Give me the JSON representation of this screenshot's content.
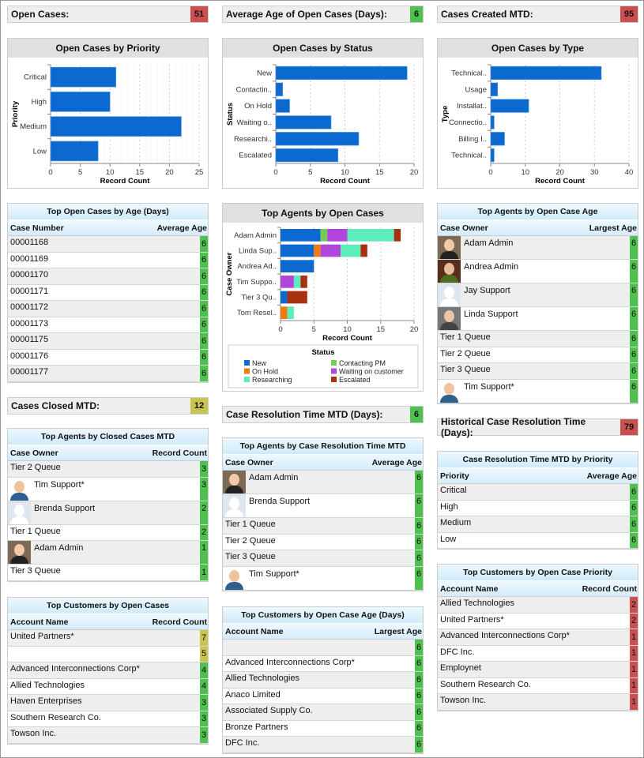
{
  "colors": {
    "green": "#4fc14f",
    "red": "#c9504f",
    "yellow": "#c8c450",
    "bar": "#0b69cf"
  },
  "metrics": [
    {
      "label": "Open Cases:",
      "value": "51",
      "color": "red"
    },
    {
      "label": "Average Age of Open Cases (Days):",
      "value": "6",
      "color": "green"
    },
    {
      "label": "Cases Created MTD:",
      "value": "95",
      "color": "red"
    },
    {
      "label": "Cases Closed MTD:",
      "value": "12",
      "color": "yellow"
    },
    {
      "label": "Case Resolution Time MTD (Days):",
      "value": "6",
      "color": "green"
    },
    {
      "label": "Historical Case Resolution Time (Days):",
      "value": "79",
      "color": "red"
    }
  ],
  "chart_data": [
    {
      "type": "bar",
      "orientation": "horizontal",
      "title": "Open Cases by Priority",
      "xlabel": "Record Count",
      "ylabel": "Priority",
      "categories": [
        "Critical",
        "High",
        "Medium",
        "Low"
      ],
      "values": [
        11,
        10,
        22,
        8
      ],
      "xlim": [
        0,
        25
      ],
      "xticks": [
        0,
        5,
        10,
        15,
        20,
        25
      ],
      "grid": true
    },
    {
      "type": "bar",
      "orientation": "horizontal",
      "title": "Open Cases by Status",
      "xlabel": "Record Count",
      "ylabel": "Status",
      "categories": [
        "New",
        "Contactin..",
        "On Hold",
        "Waiting o..",
        "Researchi..",
        "Escalated"
      ],
      "values": [
        19,
        1,
        2,
        8,
        12,
        9
      ],
      "xlim": [
        0,
        20
      ],
      "xticks": [
        0,
        5,
        10,
        15,
        20
      ],
      "grid": true
    },
    {
      "type": "bar",
      "orientation": "horizontal",
      "title": "Open Cases by Type",
      "xlabel": "Record Count",
      "ylabel": "Type",
      "categories": [
        "Technical..",
        "Usage",
        "Installat..",
        "Connectio..",
        "Billing I..",
        "Technical.."
      ],
      "values": [
        32,
        2,
        11,
        1,
        4,
        1
      ],
      "xlim": [
        0,
        40
      ],
      "xticks": [
        0,
        10,
        20,
        30,
        40
      ],
      "grid": true
    },
    {
      "type": "bar",
      "orientation": "horizontal",
      "stacked": true,
      "title": "Top Agents by Open Cases",
      "xlabel": "Record Count",
      "ylabel": "Case Owner",
      "categories": [
        "Adam Admin",
        "Linda Sup..",
        "Andrea Ad..",
        "Tim Suppo..",
        "Tier 3 Qu..",
        "Tom Resel.."
      ],
      "xlim": [
        0,
        20
      ],
      "xticks": [
        0,
        5,
        10,
        15,
        20
      ],
      "grid": true,
      "legend_title": "Status",
      "legend_position": "bottom",
      "series": [
        {
          "name": "New",
          "color": "#0b69cf",
          "values": [
            6,
            5,
            5,
            0,
            1,
            0
          ]
        },
        {
          "name": "Contacting PM",
          "color": "#6fcf57",
          "values": [
            1,
            0,
            0,
            0,
            0,
            0
          ]
        },
        {
          "name": "On Hold",
          "color": "#ee7a10",
          "values": [
            0,
            1,
            0,
            0,
            0,
            1
          ]
        },
        {
          "name": "Waiting on customer",
          "color": "#b145dc",
          "values": [
            3,
            3,
            0,
            2,
            0,
            0
          ]
        },
        {
          "name": "Researching",
          "color": "#5eecba",
          "values": [
            7,
            3,
            0,
            1,
            0,
            1
          ]
        },
        {
          "name": "Escalated",
          "color": "#a8300f",
          "values": [
            1,
            1,
            0,
            1,
            3,
            0
          ]
        }
      ]
    }
  ],
  "tables": [
    {
      "title": "Top Open Cases by Age (Days)",
      "columns": [
        "Case Number",
        "Average Age"
      ],
      "rows": [
        {
          "name": "00001168",
          "value": "6",
          "color": "green"
        },
        {
          "name": "00001169",
          "value": "6",
          "color": "green"
        },
        {
          "name": "00001170",
          "value": "6",
          "color": "green"
        },
        {
          "name": "00001171",
          "value": "6",
          "color": "green"
        },
        {
          "name": "00001172",
          "value": "6",
          "color": "green"
        },
        {
          "name": "00001173",
          "value": "6",
          "color": "green"
        },
        {
          "name": "00001175",
          "value": "6",
          "color": "green"
        },
        {
          "name": "00001176",
          "value": "6",
          "color": "green"
        },
        {
          "name": "00001177",
          "value": "6",
          "color": "green"
        }
      ]
    },
    {
      "title": "Top Agents by Closed Cases MTD",
      "columns": [
        "Case Owner",
        "Record Count"
      ],
      "rows": [
        {
          "name": "Tier 2 Queue",
          "value": "3",
          "color": "green"
        },
        {
          "name": "Tim Support*",
          "value": "3",
          "color": "green",
          "avatar": "tim"
        },
        {
          "name": "Brenda Support",
          "value": "2",
          "color": "green",
          "avatar": "blank"
        },
        {
          "name": "Tier 1 Queue",
          "value": "2",
          "color": "green"
        },
        {
          "name": "Adam Admin",
          "value": "1",
          "color": "green",
          "avatar": "adam"
        },
        {
          "name": "Tier 3 Queue",
          "value": "1",
          "color": "green"
        }
      ]
    },
    {
      "title": "Top Customers by Open Cases",
      "columns": [
        "Account Name",
        "Record Count"
      ],
      "rows": [
        {
          "name": "United Partners*",
          "value": "7",
          "color": "yellow"
        },
        {
          "name": "",
          "value": "5",
          "color": "yellow"
        },
        {
          "name": "Advanced Interconnections Corp*",
          "value": "4",
          "color": "green"
        },
        {
          "name": "Allied Technologies",
          "value": "4",
          "color": "green"
        },
        {
          "name": "Haven Enterprises",
          "value": "3",
          "color": "green"
        },
        {
          "name": "Southern Research Co.",
          "value": "3",
          "color": "green"
        },
        {
          "name": "Towson Inc.",
          "value": "3",
          "color": "green"
        }
      ]
    },
    {
      "title": "Top Agents by Case Resolution Time MTD",
      "columns": [
        "Case Owner",
        "Average Age"
      ],
      "rows": [
        {
          "name": "Adam Admin",
          "value": "6",
          "color": "green",
          "avatar": "adam"
        },
        {
          "name": "Brenda Support",
          "value": "6",
          "color": "green",
          "avatar": "blank"
        },
        {
          "name": "Tier 1 Queue",
          "value": "6",
          "color": "green"
        },
        {
          "name": "Tier 2 Queue",
          "value": "6",
          "color": "green"
        },
        {
          "name": "Tier 3 Queue",
          "value": "6",
          "color": "green"
        },
        {
          "name": "Tim Support*",
          "value": "6",
          "color": "green",
          "avatar": "tim"
        }
      ]
    },
    {
      "title": "Top Customers by Open Case Age (Days)",
      "columns": [
        "Account Name",
        "Largest Age"
      ],
      "rows": [
        {
          "name": "",
          "value": "6",
          "color": "green"
        },
        {
          "name": "Advanced Interconnections Corp*",
          "value": "6",
          "color": "green"
        },
        {
          "name": "Allied Technologies",
          "value": "6",
          "color": "green"
        },
        {
          "name": "Anaco Limited",
          "value": "6",
          "color": "green"
        },
        {
          "name": "Associated Supply Co.",
          "value": "6",
          "color": "green"
        },
        {
          "name": "Bronze Partners",
          "value": "6",
          "color": "green"
        },
        {
          "name": "DFC Inc.",
          "value": "6",
          "color": "green"
        }
      ]
    },
    {
      "title": "Top Agents by Open Case Age",
      "columns": [
        "Case Owner",
        "Largest Age"
      ],
      "rows": [
        {
          "name": "Adam Admin",
          "value": "6",
          "color": "green",
          "avatar": "adam"
        },
        {
          "name": "Andrea Admin",
          "value": "6",
          "color": "green",
          "avatar": "andrea"
        },
        {
          "name": "Jay Support",
          "value": "6",
          "color": "green",
          "avatar": "blank"
        },
        {
          "name": "Linda Support",
          "value": "6",
          "color": "green",
          "avatar": "linda"
        },
        {
          "name": "Tier 1 Queue",
          "value": "6",
          "color": "green"
        },
        {
          "name": "Tier 2 Queue",
          "value": "6",
          "color": "green"
        },
        {
          "name": "Tier 3 Queue",
          "value": "6",
          "color": "green"
        },
        {
          "name": "Tim Support*",
          "value": "6",
          "color": "green",
          "avatar": "tim"
        }
      ]
    },
    {
      "title": "Case Resolution Time MTD by Priority",
      "columns": [
        "Priority",
        "Average Age"
      ],
      "rows": [
        {
          "name": "Critical",
          "value": "6",
          "color": "green"
        },
        {
          "name": "High",
          "value": "6",
          "color": "green"
        },
        {
          "name": "Medium",
          "value": "6",
          "color": "green"
        },
        {
          "name": "Low",
          "value": "6",
          "color": "green"
        }
      ]
    },
    {
      "title": "Top Customers by Open Case Priority",
      "columns": [
        "Account Name",
        "Record Count"
      ],
      "rows": [
        {
          "name": "Allied Technologies",
          "value": "2",
          "color": "red"
        },
        {
          "name": "United Partners*",
          "value": "2",
          "color": "red"
        },
        {
          "name": "Advanced Interconnections Corp*",
          "value": "1",
          "color": "red"
        },
        {
          "name": "DFC Inc.",
          "value": "1",
          "color": "red"
        },
        {
          "name": "Employnet",
          "value": "1",
          "color": "red"
        },
        {
          "name": "Southern Research Co.",
          "value": "1",
          "color": "red"
        },
        {
          "name": "Towson Inc.",
          "value": "1",
          "color": "red"
        }
      ]
    }
  ]
}
